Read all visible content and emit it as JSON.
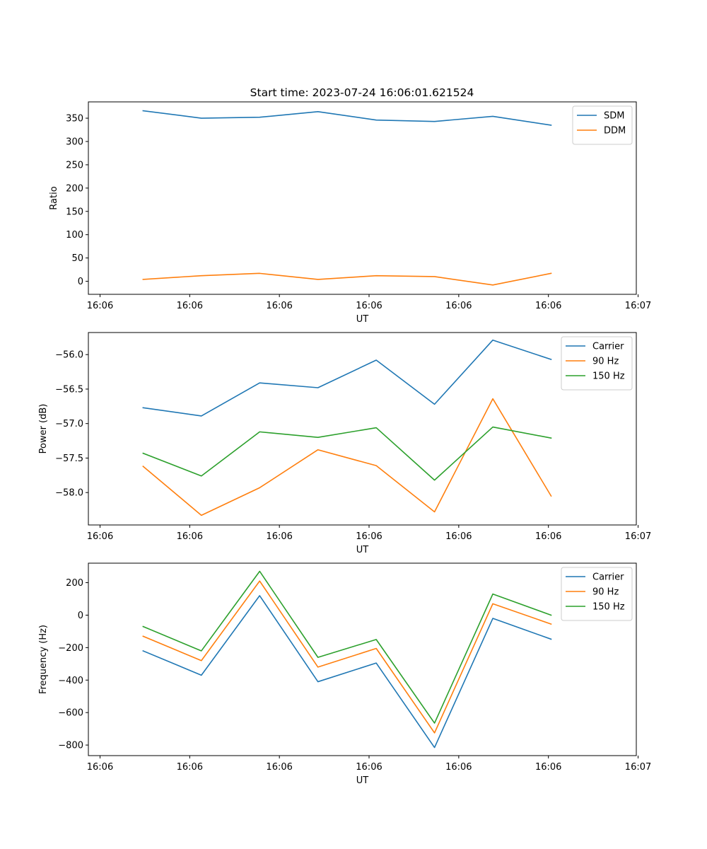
{
  "figure": {
    "title": "Start time: 2023-07-24 16:06:01.621524"
  },
  "chart_data": [
    {
      "type": "line",
      "title": "Start time: 2023-07-24 16:06:01.621524",
      "xlabel": "UT",
      "ylabel": "Ratio",
      "x_tick_labels": [
        "16:06",
        "16:06",
        "16:06",
        "16:06",
        "16:06",
        "16:06",
        "16:07"
      ],
      "xlim": [
        -0.13,
        5.98
      ],
      "x": [
        0.48,
        1.13,
        1.78,
        2.43,
        3.08,
        3.73,
        4.38,
        5.03
      ],
      "yticks": [
        0,
        50,
        100,
        150,
        200,
        250,
        300,
        350
      ],
      "ylim": [
        -28,
        385
      ],
      "legend_position": "top-right",
      "series": [
        {
          "name": "SDM",
          "color": "#1f77b4",
          "values": [
            366,
            350,
            352,
            364,
            346,
            343,
            354,
            335
          ]
        },
        {
          "name": "DDM",
          "color": "#ff7f0e",
          "values": [
            4,
            12,
            17,
            4,
            12,
            10,
            -8,
            17
          ]
        }
      ]
    },
    {
      "type": "line",
      "title": "",
      "xlabel": "UT",
      "ylabel": "Power (dB)",
      "x_tick_labels": [
        "16:06",
        "16:06",
        "16:06",
        "16:06",
        "16:06",
        "16:06",
        "16:07"
      ],
      "xlim": [
        -0.13,
        5.98
      ],
      "x": [
        0.48,
        1.13,
        1.78,
        2.43,
        3.08,
        3.73,
        4.38,
        5.03
      ],
      "yticks": [
        -58.0,
        -57.5,
        -57.0,
        -56.5,
        -56.0
      ],
      "ytick_labels": [
        "−58.0",
        "−57.5",
        "−57.0",
        "−56.5",
        "−56.0"
      ],
      "ylim": [
        -58.47,
        -55.68
      ],
      "legend_position": "top-right",
      "series": [
        {
          "name": "Carrier",
          "color": "#1f77b4",
          "values": [
            -56.77,
            -56.89,
            -56.41,
            -56.48,
            -56.08,
            -56.72,
            -55.79,
            -56.07
          ]
        },
        {
          "name": "90 Hz",
          "color": "#ff7f0e",
          "values": [
            -57.62,
            -58.33,
            -57.93,
            -57.38,
            -57.61,
            -58.28,
            -56.64,
            -58.05
          ]
        },
        {
          "name": "150 Hz",
          "color": "#2ca02c",
          "values": [
            -57.43,
            -57.76,
            -57.12,
            -57.2,
            -57.06,
            -57.82,
            -57.05,
            -57.21
          ]
        }
      ]
    },
    {
      "type": "line",
      "title": "",
      "xlabel": "UT",
      "ylabel": "Frequency (Hz)",
      "x_tick_labels": [
        "16:06",
        "16:06",
        "16:06",
        "16:06",
        "16:06",
        "16:06",
        "16:07"
      ],
      "xlim": [
        -0.13,
        5.98
      ],
      "x": [
        0.48,
        1.13,
        1.78,
        2.43,
        3.08,
        3.73,
        4.38,
        5.03
      ],
      "yticks": [
        -800,
        -600,
        -400,
        -200,
        0,
        200
      ],
      "ytick_labels": [
        "−800",
        "−600",
        "−400",
        "−200",
        "0",
        "200"
      ],
      "ylim": [
        -865,
        320
      ],
      "legend_position": "top-right",
      "series": [
        {
          "name": "Carrier",
          "color": "#1f77b4",
          "values": [
            -220,
            -370,
            120,
            -410,
            -295,
            -815,
            -20,
            -148
          ]
        },
        {
          "name": "90 Hz",
          "color": "#ff7f0e",
          "values": [
            -130,
            -280,
            210,
            -320,
            -205,
            -725,
            70,
            -55
          ]
        },
        {
          "name": "150 Hz",
          "color": "#2ca02c",
          "values": [
            -70,
            -220,
            270,
            -260,
            -150,
            -665,
            130,
            0
          ]
        }
      ]
    }
  ]
}
